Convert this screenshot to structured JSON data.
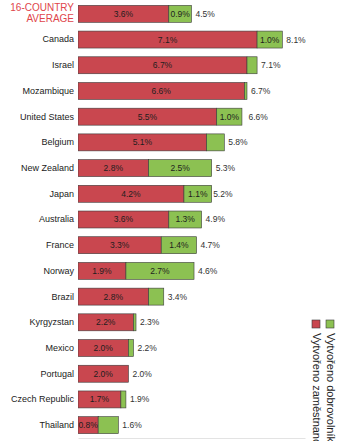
{
  "chart_data": {
    "type": "bar",
    "orientation": "horizontal",
    "stacked": true,
    "data_labels": true,
    "tick_labels": "y",
    "legend": "right",
    "categories": [
      "16-COUNTRY AVERAGE",
      "Canada",
      "Israel",
      "Mozambique",
      "United States",
      "Belgium",
      "New Zealand",
      "Japan",
      "Australia",
      "France",
      "Norway",
      "Brazil",
      "Kyrgyzstan",
      "Mexico",
      "Portugal",
      "Czech Republic",
      "Thailand"
    ],
    "series": [
      {
        "name": "Vytvořeno zaměstnanci",
        "color": "#c9474f",
        "values": [
          3.6,
          7.1,
          6.7,
          6.6,
          5.5,
          5.1,
          2.8,
          4.2,
          3.6,
          3.3,
          1.9,
          2.8,
          2.2,
          2.0,
          2.0,
          1.7,
          0.8
        ],
        "value_labels": [
          "3.6%",
          "7.1%",
          "6.7%",
          "6.6%",
          "5.5%",
          "5.1%",
          "2.8%",
          "4.2%",
          "3.6%",
          "3.3%",
          "1.9%",
          "2.8%",
          "2.2%",
          "2.0%",
          "2.0%",
          "1.7%",
          "0.8%"
        ]
      },
      {
        "name": "Vytvořeno dobrovolníky",
        "color": "#8cc152",
        "values": [
          0.9,
          1.0,
          0.4,
          0.1,
          1.0,
          0.7,
          2.5,
          1.1,
          1.3,
          1.4,
          2.7,
          0.6,
          0.1,
          0.2,
          0,
          0.2,
          0.8
        ],
        "value_labels": [
          "0.9%",
          "1.0%",
          null,
          null,
          "1.0%",
          null,
          "2.5%",
          "1.1%",
          "1.3%",
          "1.4%",
          "2.7%",
          null,
          null,
          null,
          null,
          null,
          null
        ]
      }
    ],
    "totals": [
      4.5,
      8.1,
      7.1,
      6.7,
      6.6,
      5.8,
      5.3,
      5.2,
      4.9,
      4.7,
      4.6,
      3.4,
      2.3,
      2.2,
      2.0,
      1.9,
      1.6
    ],
    "total_labels": [
      "4.5%",
      "8.1%",
      "7.1%",
      "6.7%",
      "6.6%",
      "5.8%",
      "5.3%",
      "5.2%",
      "4.9%",
      "4.7%",
      "4.6%",
      "3.4%",
      "2.3%",
      "2.2%",
      "2.0%",
      "1.9%",
      "1.6%"
    ],
    "xlim": [
      0,
      9
    ]
  }
}
